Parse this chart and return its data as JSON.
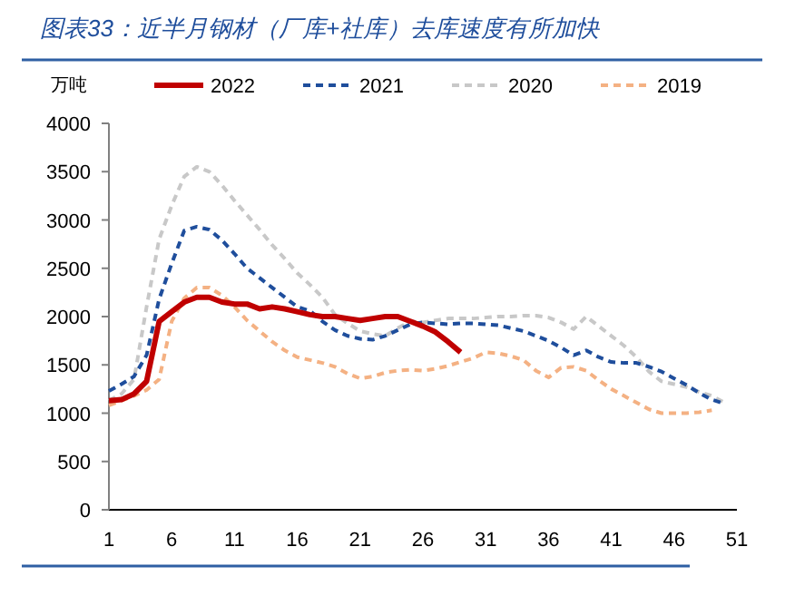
{
  "chart_data": {
    "type": "line",
    "title": "图表33：近半月钢材（厂库+社库）去库速度有所加快",
    "ylabel": "万吨",
    "x": [
      1,
      2,
      3,
      4,
      5,
      6,
      7,
      8,
      9,
      10,
      11,
      12,
      13,
      14,
      15,
      16,
      17,
      18,
      19,
      20,
      21,
      22,
      23,
      24,
      25,
      26,
      27,
      28,
      29,
      30,
      31,
      32,
      33,
      34,
      35,
      36,
      37,
      38,
      39,
      40,
      41,
      42,
      43,
      44,
      45,
      46,
      47,
      48,
      49,
      50
    ],
    "xlim": [
      1,
      51
    ],
    "ylim": [
      0,
      4000
    ],
    "xticks": [
      1,
      6,
      11,
      16,
      21,
      26,
      31,
      36,
      41,
      46,
      51
    ],
    "yticks": [
      0,
      500,
      1000,
      1500,
      2000,
      2500,
      3000,
      3500,
      4000
    ],
    "legend": "top",
    "marker": "none",
    "series": [
      {
        "name": "2022",
        "color": "#c00000",
        "line_style": "solid",
        "values": [
          1130,
          1140,
          1200,
          1330,
          1950,
          2050,
          2150,
          2200,
          2200,
          2150,
          2130,
          2130,
          2080,
          2100,
          2080,
          2050,
          2020,
          2000,
          2000,
          1980,
          1960,
          1980,
          2000,
          2000,
          1950,
          1900,
          1840,
          1740,
          1630,
          null,
          null,
          null,
          null,
          null,
          null,
          null,
          null,
          null,
          null,
          null,
          null,
          null,
          null,
          null,
          null,
          null,
          null,
          null,
          null,
          null
        ]
      },
      {
        "name": "2021",
        "color": "#1f4e9c",
        "line_style": "dashed",
        "values": [
          1230,
          1300,
          1380,
          1600,
          2180,
          2550,
          2890,
          2930,
          2900,
          2790,
          2650,
          2500,
          2400,
          2300,
          2200,
          2100,
          2060,
          1950,
          1860,
          1800,
          1770,
          1760,
          1800,
          1860,
          1920,
          1940,
          1930,
          1920,
          1930,
          1930,
          1920,
          1910,
          1880,
          1850,
          1800,
          1750,
          1680,
          1600,
          1650,
          1580,
          1530,
          1520,
          1520,
          1480,
          1430,
          1360,
          1290,
          1210,
          1140,
          1100
        ]
      },
      {
        "name": "2020",
        "color": "#c8c8c8",
        "line_style": "dashed",
        "values": [
          1130,
          1200,
          1350,
          2100,
          2800,
          3150,
          3450,
          3550,
          3500,
          3360,
          3200,
          3050,
          2900,
          2740,
          2600,
          2450,
          2330,
          2200,
          2020,
          1930,
          1850,
          1820,
          1800,
          1880,
          1950,
          1940,
          1960,
          1980,
          1980,
          1980,
          1990,
          2000,
          2000,
          2010,
          2010,
          1990,
          1940,
          1870,
          2000,
          1900,
          1800,
          1700,
          1580,
          1430,
          1330,
          1300,
          1270,
          1220,
          1180,
          1110
        ]
      },
      {
        "name": "2019",
        "color": "#f4b183",
        "line_style": "dashed",
        "values": [
          1080,
          1130,
          1180,
          1240,
          1350,
          1950,
          2190,
          2300,
          2300,
          2220,
          2100,
          1960,
          1850,
          1740,
          1650,
          1580,
          1550,
          1520,
          1480,
          1410,
          1360,
          1380,
          1420,
          1440,
          1450,
          1440,
          1460,
          1490,
          1530,
          1570,
          1630,
          1620,
          1590,
          1550,
          1440,
          1370,
          1470,
          1480,
          1440,
          1340,
          1250,
          1180,
          1110,
          1040,
          1000,
          1000,
          1000,
          1010,
          1030,
          null
        ]
      }
    ]
  }
}
